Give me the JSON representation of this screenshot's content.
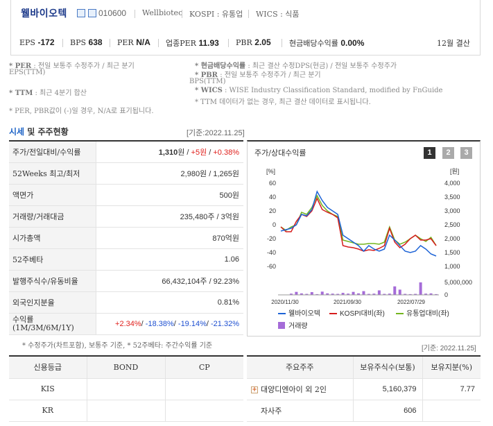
{
  "header": {
    "company_name": "웰바이오텍",
    "stock_code": "010600",
    "english_name": "Wellbiotec",
    "market": "KOSPI : 유통업",
    "wics": "WICS : 식품",
    "metrics": [
      {
        "label": "EPS",
        "value": "-172"
      },
      {
        "label": "BPS",
        "value": "638"
      },
      {
        "label": "PER",
        "value": "N/A"
      },
      {
        "label": "업종PER",
        "value": "11.93"
      },
      {
        "label": "PBR",
        "value": "2.05"
      },
      {
        "label": "현금배당수익률",
        "value": "0.00%"
      }
    ],
    "settlement": "12월 결산"
  },
  "notes": {
    "per_key": "* PER",
    "per_text": ": 전일 보통주 수정주가 / 최근 분기",
    "per_text2": "EPS(TTM)",
    "ttm_key": "* TTM",
    "ttm_text": ": 최근 4분기 합산",
    "per_pbr": "* PER, PBR값이 (-)일 경우, N/A로 표기됩니다.",
    "div_key": "* 현금배당수익률",
    "div_text": ": 최근 결산 수정DPS(현금) / 전일 보통주 수정주가",
    "pbr_key": "* PBR",
    "pbr_text": ": 전일 보통주 수정주가 / 최근 분기",
    "pbr_text2": "BPS(TTM)",
    "wics_key": "* WICS",
    "wics_text": ": WISE Industry Classification Standard, modified by FnGuide",
    "ttm_na": "* TTM 데이터가 없는 경우, 최근 결산 데이터로 표시됩니다."
  },
  "price_section": {
    "title_a": "시세",
    "title_b": " 및 주주현황",
    "date": "[기준:2022.11.25]",
    "rows": [
      {
        "label": "주가/전일대비/수익률"
      },
      {
        "label": "52Weeks 최고/최저",
        "value": "2,980원 / 1,265원"
      },
      {
        "label": "액면가",
        "value": "500원"
      },
      {
        "label": "거래량/거래대금",
        "value": "235,480주 / 3억원"
      },
      {
        "label": "시가총액",
        "value": "870억원"
      },
      {
        "label": "52주베타",
        "value": "1.06"
      },
      {
        "label": "발행주식수/유동비율",
        "value": "66,432,104주 / 92.23%"
      },
      {
        "label": "외국인지분율",
        "value": "0.81%"
      },
      {
        "label": "수익률",
        "label2": "(1M/3M/6M/1Y)"
      }
    ],
    "price": "1,310",
    "price_unit": "원 / ",
    "change": "+5원",
    "slash": " / ",
    "change_pct": "+0.38%",
    "returns": [
      "+2.34%",
      "-18.38%",
      "-19.14%",
      "-21.32%"
    ],
    "returns_sep": "/ "
  },
  "chart": {
    "title": "주가/상대수익률",
    "tabs": [
      "1",
      "2",
      "3"
    ]
  },
  "chart_data": {
    "type": "line",
    "left_axis_label": "[%]",
    "right_axis_label": "[원]",
    "left_ticks": [
      "60",
      "40",
      "20",
      "0",
      "-20",
      "-40",
      "-60"
    ],
    "left_ylim": [
      -60,
      60
    ],
    "right_ticks": [
      "4,000",
      "3,500",
      "3,000",
      "2,500",
      "2,000",
      "1,500",
      "1,000"
    ],
    "right_ylim": [
      1000,
      4000
    ],
    "volume_ticks": [
      "5,000,000",
      "0"
    ],
    "volume_max": 5000000,
    "x_labels": [
      "2020/11/30",
      "2021/09/30",
      "2022/07/29"
    ],
    "legend": [
      "웰바이오텍",
      "KOSPI대비(좌)",
      "유통업대비(좌)",
      "거래량"
    ],
    "colors": {
      "stock": "#1d63d6",
      "kospi": "#d61c1c",
      "sector": "#74b51e",
      "volume": "#a56cd8"
    },
    "stock": [
      -9,
      -7,
      -5,
      0,
      15,
      13,
      22,
      48,
      35,
      25,
      20,
      15,
      -15,
      -20,
      -25,
      -30,
      -38,
      -30,
      -35,
      -38,
      -35,
      -15,
      -22,
      -30,
      -38,
      -40,
      -38,
      -30,
      -35,
      -42,
      -45
    ],
    "kospi": [
      -3,
      -10,
      -10,
      5,
      15,
      12,
      20,
      38,
      22,
      18,
      15,
      10,
      -30,
      -32,
      -33,
      -35,
      -38,
      -36,
      -37,
      -34,
      -30,
      -5,
      -25,
      -33,
      -28,
      -20,
      -15,
      -22,
      -22,
      -20,
      -30
    ],
    "sector": [
      -3,
      -8,
      -3,
      0,
      18,
      15,
      25,
      42,
      28,
      20,
      15,
      12,
      -22,
      -24,
      -26,
      -28,
      -28,
      -27,
      -27,
      -28,
      -25,
      -3,
      -22,
      -28,
      -25,
      -20,
      -15,
      -20,
      -24,
      -18,
      -30
    ],
    "volume": [
      0.1,
      0.1,
      0.5,
      1.2,
      0.6,
      0.4,
      1.1,
      0.3,
      1.3,
      0.6,
      0.5,
      0.4,
      0.8,
      0.5,
      1.2,
      0.6,
      1.5,
      0.4,
      0.5,
      1.8,
      0.4,
      0.5,
      3.4,
      2.1,
      0.4,
      0.3,
      0.4,
      5.0,
      0.5,
      0.6,
      0.3
    ]
  },
  "bottom_note": "* 수정주가(차트포함), 보통주 기준, * 52주베타: 주간수익률 기준",
  "bottom_date": "[기준: 2022.11.25]",
  "credit": {
    "headers": [
      "신용등급",
      "BOND",
      "CP"
    ],
    "rows": [
      [
        "KIS",
        "",
        ""
      ],
      [
        "KR",
        "",
        ""
      ]
    ]
  },
  "holders": {
    "headers": [
      "주요주주",
      "보유주식수(보통)",
      "보유지분(%)"
    ],
    "rows": [
      [
        "대양디엔아이 외 2인",
        "5,160,379",
        "7.77"
      ],
      [
        "자사주",
        "606",
        ""
      ]
    ]
  }
}
